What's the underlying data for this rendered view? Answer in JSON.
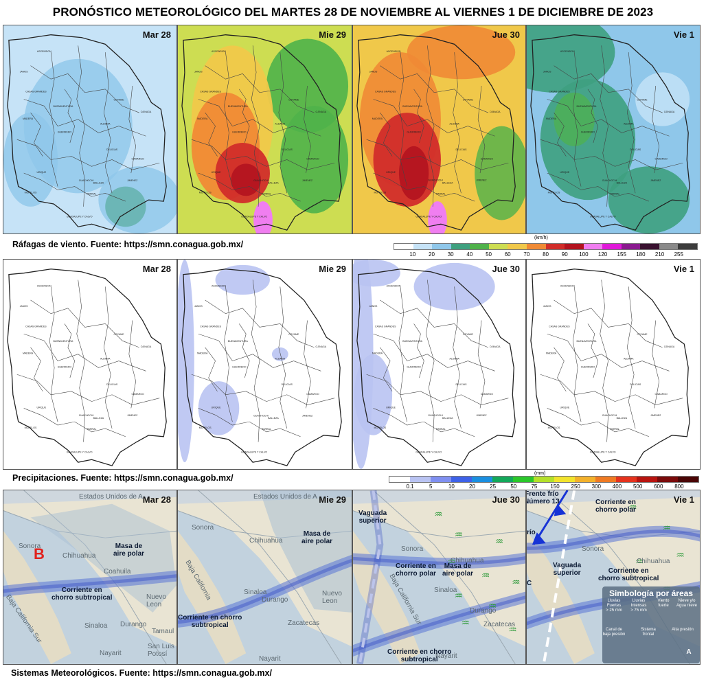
{
  "title": "PRONÓSTICO METEOROLÓGICO DEL MARTES 28 DE NOVIEMBRE AL VIERNES 1 DE DICIEMBRE DE 2023",
  "days": [
    "Mar 28",
    "Mie 29",
    "Jue 30",
    "Vie 1"
  ],
  "rows": {
    "wind": {
      "source": "Ráfagas de viento.  Fuente: https://smn.conagua.gob.mx/",
      "unit": "(km/h)",
      "ticks": [
        "10",
        "20",
        "30",
        "40",
        "50",
        "60",
        "70",
        "80",
        "90",
        "100",
        "120",
        "155",
        "180",
        "210",
        "255"
      ],
      "colors": [
        "#ffffff",
        "#c6e3f7",
        "#8fc7ea",
        "#3ea07f",
        "#4fb24a",
        "#cddd52",
        "#f0c84a",
        "#f08a35",
        "#d12d2a",
        "#b3131f",
        "#f07ef0",
        "#e019d9",
        "#8a1a8f",
        "#3a1230",
        "#8a8a8a",
        "#3c3c3c"
      ]
    },
    "rain": {
      "source": "Precipitaciones.  Fuente: https://smn.conagua.gob.mx/",
      "unit": "(mm)",
      "ticks": [
        "0.1",
        "5",
        "10",
        "20",
        "25",
        "50",
        "75",
        "150",
        "250",
        "300",
        "400",
        "500",
        "600",
        "800"
      ],
      "colors": [
        "#ffffff",
        "#b9c3f2",
        "#7f8ff0",
        "#3e62e8",
        "#1b8fe0",
        "#14a85a",
        "#2bc72b",
        "#b4e02a",
        "#f2e32c",
        "#f3b12b",
        "#ef7a23",
        "#e5331d",
        "#b8140f",
        "#7a0a0a",
        "#4a0505"
      ]
    },
    "systems": {
      "source": "Sistemas Meteorológicos.    Fuente: https://smn.conagua.gob.mx/"
    }
  },
  "systems_labels": {
    "d1": {
      "country": "Estados Unidos de A",
      "sonora": "Sonora",
      "chihuahua": "Chihuahua",
      "coahuila": "Coahuila",
      "nuevo_leon": "Nuevo\nLeon",
      "durango": "Durango",
      "sinaloa": "Sinaloa",
      "baja": "Baja California Sur",
      "tamaulipas": "Tamaul",
      "slp": "San Luis\nPotosí",
      "nayarit": "Nayarit",
      "low": "B",
      "polar": "Masa de\naire polar",
      "jet": "Corriente en\nchorro subtropical"
    },
    "d2": {
      "country": "Estados Unidos de A",
      "sonora": "Sonora",
      "chihuahua": "Chihuahua",
      "sinaloa": "Sinaloa",
      "durango": "Durango",
      "nuevo_leon": "Nuevo\nLeon",
      "zacatecas": "Zacatecas",
      "nayarit": "Nayarit",
      "baja": "Baja California",
      "polar": "Masa de\naire polar",
      "jet": "Corriente en chorro\nsubtropical"
    },
    "d3": {
      "sonora": "Sonora",
      "chihuahua": "Chihuahua",
      "sinaloa": "Sinaloa",
      "durango": "Durango",
      "zacatecas": "Zacatecas",
      "nayarit": "Nayarit",
      "baja": "Baja California Sur",
      "trough": "Vaguada\nsuperior",
      "polar_jet": "Corriente en\nchorro polar",
      "polar": "Masa de\naire polar",
      "sub_jet": "Corriente en chorro\nsubtropical"
    },
    "d4": {
      "front": "Frente frío\nNúmero 13",
      "front_cut": "río",
      "polar_jet": "Corriente en\nchorro polar",
      "sonora": "Sonora",
      "chihuahua": "Chihuahua",
      "trough": "Vaguada\nsuperior",
      "sub_jet": "Corriente en\nchorro subtropical",
      "legend_title": "Simbología por áreas",
      "legend_items": [
        "Lluvias\nFuertes\n> 25 mm",
        "Lluvias\nIntensas\n> 75 mm",
        "Viento\nfuerte",
        "Nieve y/o\nAgua nieve",
        "Canal de\nbaja presión",
        "Sistema\nfrontal",
        "Alta presión"
      ],
      "legend_a": "A",
      "legend_cut": "C"
    }
  }
}
